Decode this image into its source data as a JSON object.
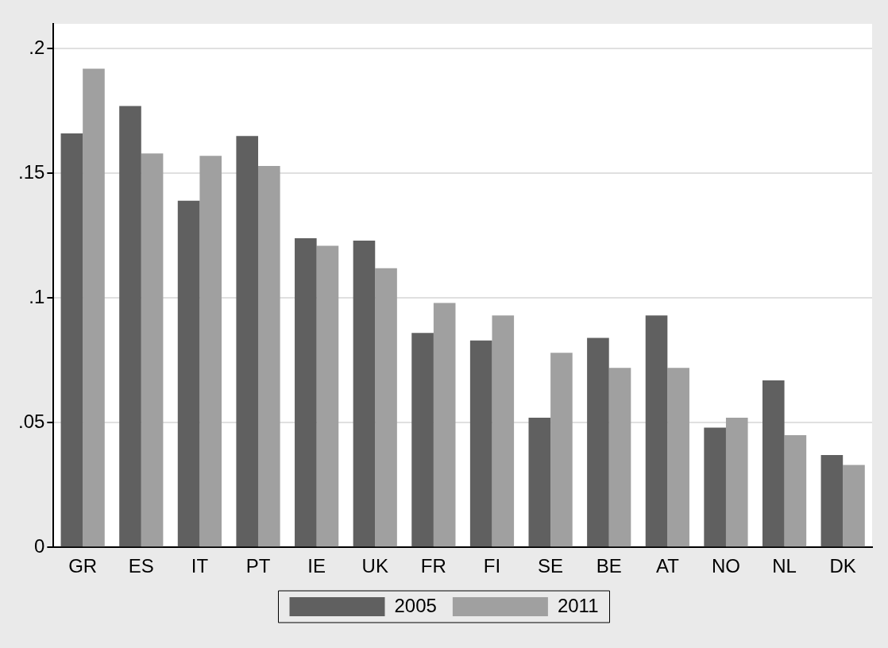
{
  "chart_data": {
    "type": "bar",
    "categories": [
      "GR",
      "ES",
      "IT",
      "PT",
      "IE",
      "UK",
      "FR",
      "FI",
      "SE",
      "BE",
      "AT",
      "NO",
      "NL",
      "DK"
    ],
    "series": [
      {
        "name": "2005",
        "color": "#606060",
        "values": [
          0.166,
          0.177,
          0.139,
          0.165,
          0.124,
          0.123,
          0.086,
          0.083,
          0.052,
          0.084,
          0.093,
          0.048,
          0.067,
          0.037
        ]
      },
      {
        "name": "2011",
        "color": "#a0a0a0",
        "values": [
          0.192,
          0.158,
          0.157,
          0.153,
          0.121,
          0.112,
          0.098,
          0.093,
          0.078,
          0.072,
          0.072,
          0.052,
          0.045,
          0.033
        ]
      }
    ],
    "ylim": [
      0,
      0.21
    ],
    "yticks": [
      {
        "value": 0,
        "label": "0"
      },
      {
        "value": 0.05,
        "label": ".05"
      },
      {
        "value": 0.1,
        "label": ".1"
      },
      {
        "value": 0.15,
        "label": ".15"
      },
      {
        "value": 0.2,
        "label": ".2"
      }
    ],
    "grid": "y",
    "legend": "bottom"
  }
}
